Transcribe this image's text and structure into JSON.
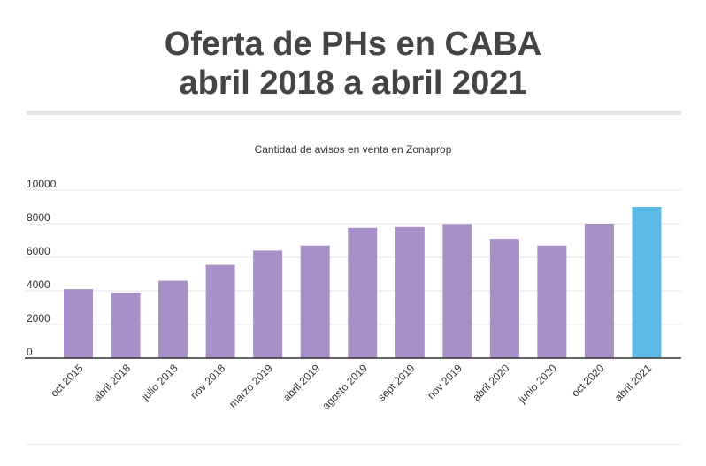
{
  "header": {
    "title_line1": "Oferta de PHs en CABA",
    "title_line2": "abril 2018 a abril 2021"
  },
  "chart_data": {
    "type": "bar",
    "title": "Oferta de PHs en CABA abril 2018 a abril 2021",
    "subtitle": "Cantidad de avisos en venta en Zonaprop",
    "categories": [
      "oct 2015",
      "abril 2018",
      "julio 2018",
      "nov 2018",
      "marzo 2019",
      "abril 2019",
      "agosto 2019",
      "sept 2019",
      "nov 2019",
      "abril 2020",
      "junio 2020",
      "oct 2020",
      "abril 2021"
    ],
    "values": [
      4100,
      3900,
      4600,
      5550,
      6400,
      6700,
      7750,
      7800,
      7980,
      7100,
      6700,
      8000,
      9000
    ],
    "ylim": [
      0,
      10000
    ],
    "yticks": [
      0,
      2000,
      4000,
      6000,
      8000,
      10000
    ],
    "grid": true,
    "colors": {
      "default": "#a98fc8",
      "highlight": "#5cb8e4"
    },
    "highlight_index": 12
  }
}
